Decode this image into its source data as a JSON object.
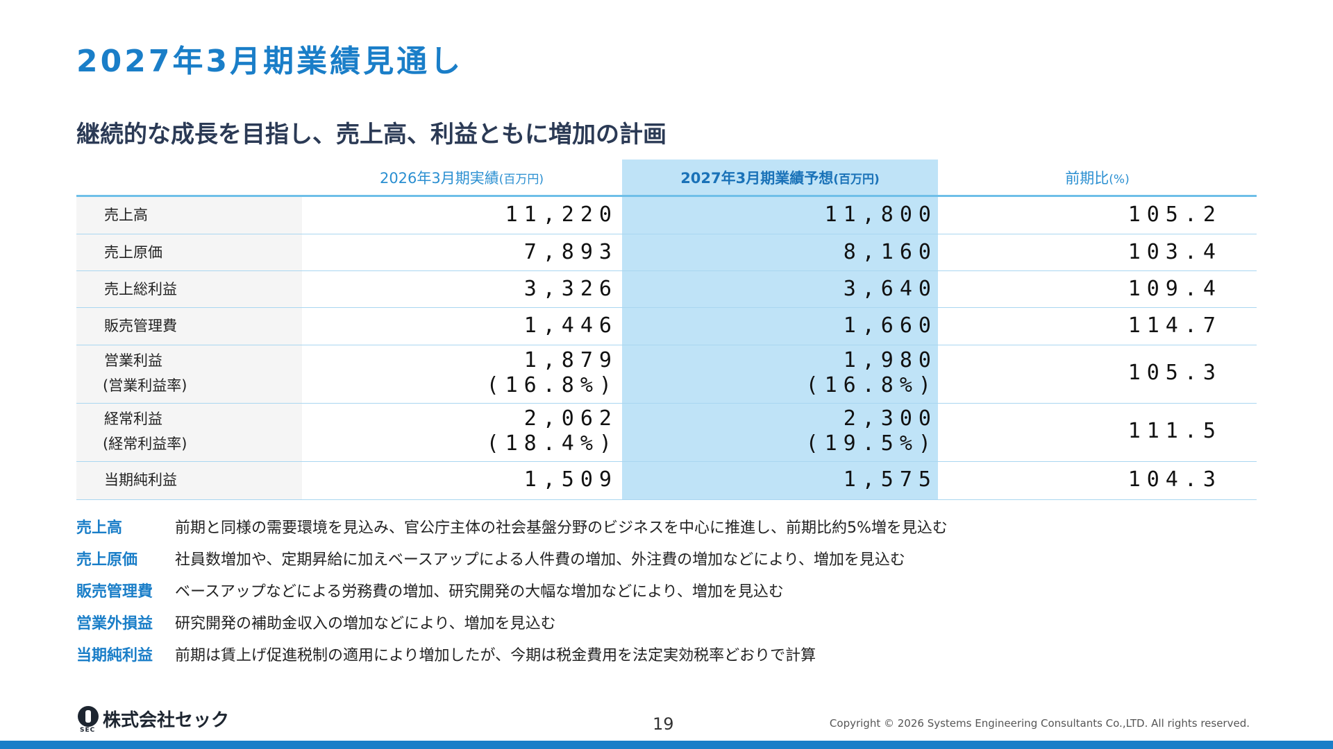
{
  "title": "2027年3月期業績見通し",
  "subtitle": "継続的な成長を目指し、売上高、利益ともに増加の計画",
  "table": {
    "headers": [
      {
        "main": "2026年3月期実績",
        "unit": "(百万円)"
      },
      {
        "main": "2027年3月期業績予想",
        "unit": "(百万円)"
      },
      {
        "main": "前期比",
        "unit": "(%)"
      }
    ],
    "rows": [
      {
        "label": "売上高",
        "sub": "",
        "v2026": "11,220",
        "v2026_sub": "",
        "v2027": "11,800",
        "v2027_sub": "",
        "ratio": "105.2"
      },
      {
        "label": "売上原価",
        "sub": "",
        "v2026": "7,893",
        "v2026_sub": "",
        "v2027": "8,160",
        "v2027_sub": "",
        "ratio": "103.4"
      },
      {
        "label": "売上総利益",
        "sub": "",
        "v2026": "3,326",
        "v2026_sub": "",
        "v2027": "3,640",
        "v2027_sub": "",
        "ratio": "109.4"
      },
      {
        "label": "販売管理費",
        "sub": "",
        "v2026": "1,446",
        "v2026_sub": "",
        "v2027": "1,660",
        "v2027_sub": "",
        "ratio": "114.7"
      },
      {
        "label": "営業利益",
        "sub": "(営業利益率)",
        "v2026": "1,879",
        "v2026_sub": "(16.8%)",
        "v2027": "1,980",
        "v2027_sub": "(16.8%)",
        "ratio": "105.3"
      },
      {
        "label": "経常利益",
        "sub": "(経常利益率)",
        "v2026": "2,062",
        "v2026_sub": "(18.4%)",
        "v2027": "2,300",
        "v2027_sub": "(19.5%)",
        "ratio": "111.5"
      },
      {
        "label": "当期純利益",
        "sub": "",
        "v2026": "1,509",
        "v2026_sub": "",
        "v2027": "1,575",
        "v2027_sub": "",
        "ratio": "104.3"
      }
    ]
  },
  "notes": [
    {
      "key": "売上高",
      "text": "前期と同様の需要環境を見込み、官公庁主体の社会基盤分野のビジネスを中心に推進し、前期比約5%増を見込む"
    },
    {
      "key": "売上原価",
      "text": "社員数増加や、定期昇給に加えベースアップによる人件費の増加、外注費の増加などにより、増加を見込む"
    },
    {
      "key": "販売管理費",
      "text": "ベースアップなどによる労務費の増加、研究開発の大幅な増加などにより、増加を見込む"
    },
    {
      "key": "営業外損益",
      "text": "研究開発の補助金収入の増加などにより、増加を見込む"
    },
    {
      "key": "当期純利益",
      "text": "前期は賃上げ促進税制の適用により増加したが、今期は税金費用を法定実効税率どおりで計算"
    }
  ],
  "footer": {
    "logo_mark": "SEC",
    "company": "株式会社セック",
    "page": "19",
    "copyright": "Copyright © 2026 Systems Engineering Consultants Co.,LTD. All rights reserved."
  },
  "colors": {
    "accent": "#1a7ec8",
    "highlight_column": "#bfe3f7",
    "row_rule": "#a9d6f0"
  }
}
